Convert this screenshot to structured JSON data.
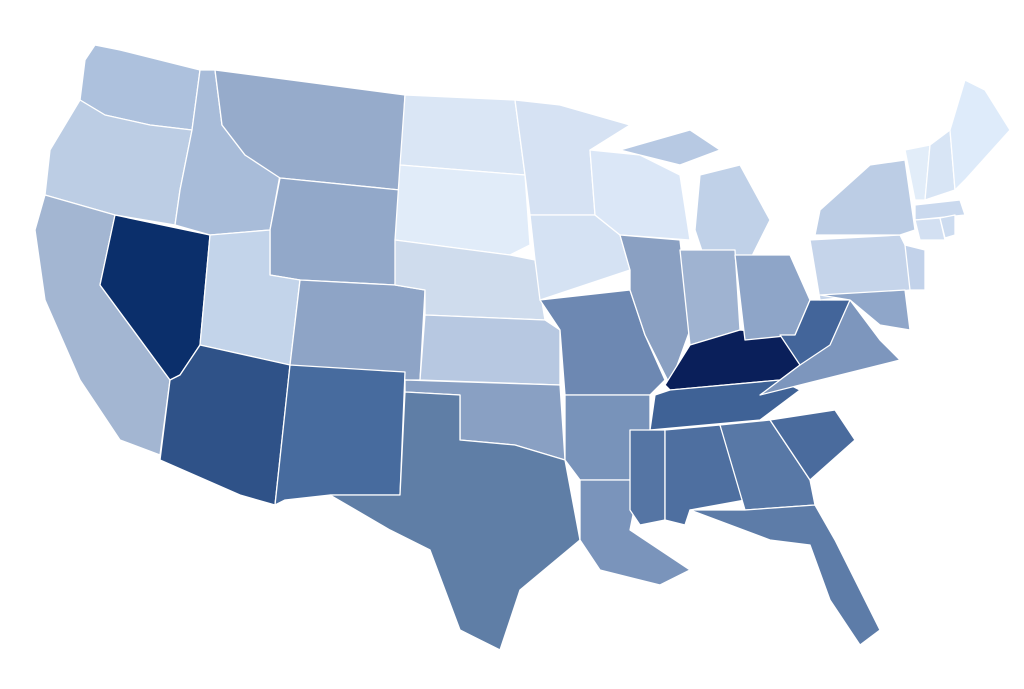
{
  "map": {
    "regions": [
      {
        "color": "#adc1dd"
      },
      {
        "color": "#bccde4"
      },
      {
        "color": "#a3b6d2"
      },
      {
        "color": "#0b2f6b"
      },
      {
        "color": "#a8bcd9"
      },
      {
        "color": "#96abcb"
      },
      {
        "color": "#92a8c9"
      },
      {
        "color": "#c3d4ea"
      },
      {
        "color": "#8ea4c6"
      },
      {
        "color": "#2f5288"
      },
      {
        "color": "#476b9e"
      },
      {
        "color": "#dae6f5"
      },
      {
        "color": "#e1ecf9"
      },
      {
        "color": "#cfdced"
      },
      {
        "color": "#b7c8e1"
      },
      {
        "color": "#89a0c3"
      },
      {
        "color": "#5f7ea6"
      },
      {
        "color": "#d6e2f3"
      },
      {
        "color": "#d5e2f3"
      },
      {
        "color": "#6d88b2"
      },
      {
        "color": "#7893ba"
      },
      {
        "color": "#7a94bb"
      },
      {
        "color": "#dbe7f7"
      },
      {
        "color": "#8aa0c2"
      },
      {
        "color": "#c0d1e8"
      },
      {
        "color": "#b7c9e3"
      },
      {
        "color": "#9fb3d1"
      },
      {
        "color": "#0a1f5a"
      },
      {
        "color": "#3f6296"
      },
      {
        "color": "#5575a4"
      },
      {
        "color": "#4e6fa0"
      },
      {
        "color": "#5878a6"
      },
      {
        "color": "#4a6b9d"
      },
      {
        "color": "#5d7ca8"
      },
      {
        "color": "#8ea5c8"
      },
      {
        "color": "#7d96bd"
      },
      {
        "color": "#43659a"
      },
      {
        "color": "#c5d4ea"
      },
      {
        "color": "#bccde5"
      },
      {
        "color": "#e2edf9"
      },
      {
        "color": "#d8e5f5"
      },
      {
        "color": "#deebfa"
      },
      {
        "color": "#cad9ee"
      },
      {
        "color": "#d3e0f2"
      },
      {
        "color": "#cddcf0"
      },
      {
        "color": "#c2d2ea"
      },
      {
        "color": "#8fa6c9"
      }
    ]
  }
}
